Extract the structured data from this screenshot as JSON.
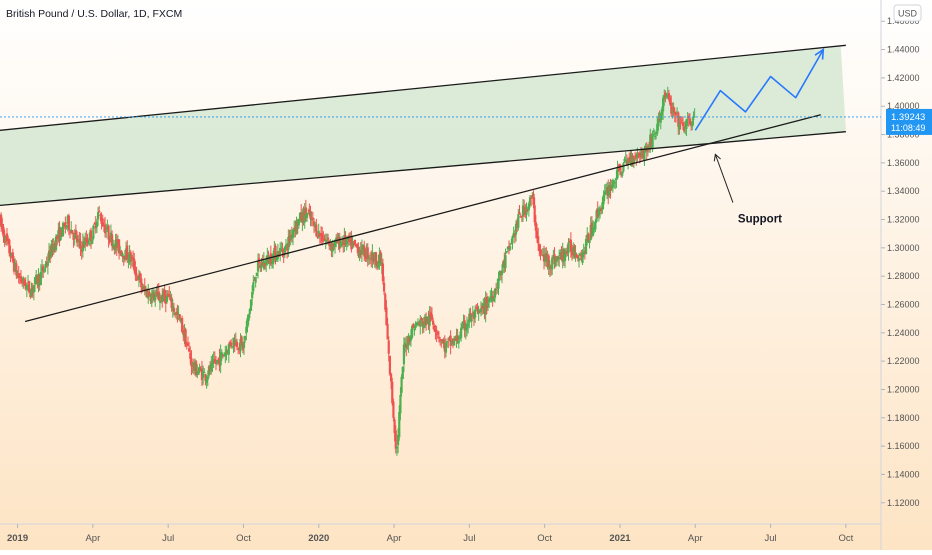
{
  "header": {
    "title": "British Pound / U.S. Dollar, 1D, FXCM"
  },
  "currency_button": {
    "label": "USD"
  },
  "price_marker": {
    "price": "1.39243",
    "countdown": "11:08:49"
  },
  "annotations": {
    "support_label": "Support"
  },
  "colors": {
    "bg_top": "#ffffff",
    "bg_bottom": "#fde4c4",
    "channel_fill": "#cfe6cd",
    "up_candle": "#4caf50",
    "down_candle": "#ef5350",
    "projection": "#2979ff",
    "price_label_bg": "#2196f3",
    "trendline": "#1a1a1a"
  },
  "chart_data": {
    "type": "candlestick",
    "title": "British Pound / U.S. Dollar, 1D, FXCM",
    "y_axis": {
      "ticks": [
        "1.12000",
        "1.14000",
        "1.16000",
        "1.18000",
        "1.20000",
        "1.22000",
        "1.24000",
        "1.26000",
        "1.28000",
        "1.30000",
        "1.32000",
        "1.34000",
        "1.36000",
        "1.38000",
        "1.40000",
        "1.42000",
        "1.44000",
        "1.46000"
      ],
      "range": [
        1.105,
        1.475
      ],
      "position": "right"
    },
    "x_axis": {
      "ticks": [
        "2019",
        "Apr",
        "Jul",
        "Oct",
        "2020",
        "Apr",
        "Jul",
        "Oct",
        "2021",
        "Apr",
        "Jul",
        "Oct"
      ],
      "tick_months": [
        0,
        3,
        6,
        9,
        12,
        15,
        18,
        21,
        24,
        27,
        30,
        33
      ],
      "range_months": [
        -0.7,
        34.4
      ]
    },
    "path_points": [
      {
        "m": -0.7,
        "p": 1.318
      },
      {
        "m": 0.0,
        "p": 1.28
      },
      {
        "m": 0.5,
        "p": 1.27
      },
      {
        "m": 1.0,
        "p": 1.283
      },
      {
        "m": 1.5,
        "p": 1.305
      },
      {
        "m": 2.0,
        "p": 1.318
      },
      {
        "m": 2.5,
        "p": 1.3
      },
      {
        "m": 3.0,
        "p": 1.31
      },
      {
        "m": 3.2,
        "p": 1.325
      },
      {
        "m": 3.6,
        "p": 1.31
      },
      {
        "m": 4.0,
        "p": 1.3
      },
      {
        "m": 4.5,
        "p": 1.293
      },
      {
        "m": 5.0,
        "p": 1.27
      },
      {
        "m": 5.5,
        "p": 1.265
      },
      {
        "m": 6.0,
        "p": 1.265
      },
      {
        "m": 6.5,
        "p": 1.247
      },
      {
        "m": 7.0,
        "p": 1.215
      },
      {
        "m": 7.5,
        "p": 1.21
      },
      {
        "m": 8.2,
        "p": 1.225
      },
      {
        "m": 8.6,
        "p": 1.235
      },
      {
        "m": 9.0,
        "p": 1.23
      },
      {
        "m": 9.5,
        "p": 1.285
      },
      {
        "m": 10.2,
        "p": 1.295
      },
      {
        "m": 10.7,
        "p": 1.3
      },
      {
        "m": 11.0,
        "p": 1.315
      },
      {
        "m": 11.5,
        "p": 1.325
      },
      {
        "m": 12.0,
        "p": 1.31
      },
      {
        "m": 12.5,
        "p": 1.302
      },
      {
        "m": 13.0,
        "p": 1.305
      },
      {
        "m": 13.5,
        "p": 1.3
      },
      {
        "m": 14.0,
        "p": 1.295
      },
      {
        "m": 14.5,
        "p": 1.29
      },
      {
        "m": 14.8,
        "p": 1.22
      },
      {
        "m": 15.1,
        "p": 1.155
      },
      {
        "m": 15.4,
        "p": 1.23
      },
      {
        "m": 15.8,
        "p": 1.245
      },
      {
        "m": 16.5,
        "p": 1.25
      },
      {
        "m": 17.0,
        "p": 1.23
      },
      {
        "m": 17.5,
        "p": 1.235
      },
      {
        "m": 18.0,
        "p": 1.25
      },
      {
        "m": 18.5,
        "p": 1.255
      },
      {
        "m": 19.0,
        "p": 1.27
      },
      {
        "m": 19.5,
        "p": 1.295
      },
      {
        "m": 20.0,
        "p": 1.322
      },
      {
        "m": 20.5,
        "p": 1.335
      },
      {
        "m": 20.8,
        "p": 1.295
      },
      {
        "m": 21.2,
        "p": 1.29
      },
      {
        "m": 21.6,
        "p": 1.293
      },
      {
        "m": 22.0,
        "p": 1.3
      },
      {
        "m": 22.5,
        "p": 1.295
      },
      {
        "m": 23.0,
        "p": 1.32
      },
      {
        "m": 23.5,
        "p": 1.34
      },
      {
        "m": 24.0,
        "p": 1.355
      },
      {
        "m": 24.5,
        "p": 1.365
      },
      {
        "m": 25.0,
        "p": 1.368
      },
      {
        "m": 25.5,
        "p": 1.385
      },
      {
        "m": 25.8,
        "p": 1.41
      },
      {
        "m": 26.1,
        "p": 1.395
      },
      {
        "m": 26.5,
        "p": 1.385
      },
      {
        "m": 27.0,
        "p": 1.392
      }
    ],
    "channel_polygon": [
      {
        "m": -0.7,
        "p": 1.383
      },
      {
        "m": 32.8,
        "p": 1.442
      },
      {
        "m": 33.0,
        "p": 1.382
      },
      {
        "m": -0.7,
        "p": 1.33
      }
    ],
    "trendlines": [
      {
        "name": "channel-top",
        "from": {
          "m": -0.7,
          "p": 1.383
        },
        "to": {
          "m": 33.0,
          "p": 1.443
        }
      },
      {
        "name": "channel-bottom",
        "from": {
          "m": -0.7,
          "p": 1.33
        },
        "to": {
          "m": 33.0,
          "p": 1.382
        }
      },
      {
        "name": "rising-support",
        "from": {
          "m": 0.3,
          "p": 1.248
        },
        "to": {
          "m": 32.0,
          "p": 1.394
        }
      }
    ],
    "projection_path": [
      {
        "m": 27.0,
        "p": 1.383
      },
      {
        "m": 28.0,
        "p": 1.411
      },
      {
        "m": 29.0,
        "p": 1.396
      },
      {
        "m": 30.0,
        "p": 1.421
      },
      {
        "m": 31.0,
        "p": 1.406
      },
      {
        "m": 32.1,
        "p": 1.44
      }
    ],
    "support_arrow": {
      "from": {
        "m": 28.5,
        "p": 1.332
      },
      "to": {
        "m": 27.8,
        "p": 1.366
      }
    },
    "support_label_pos": {
      "m": 28.7,
      "p": 1.318
    },
    "current_price": 1.39243,
    "price_line": "dotted",
    "grid": false,
    "legend": "none"
  }
}
